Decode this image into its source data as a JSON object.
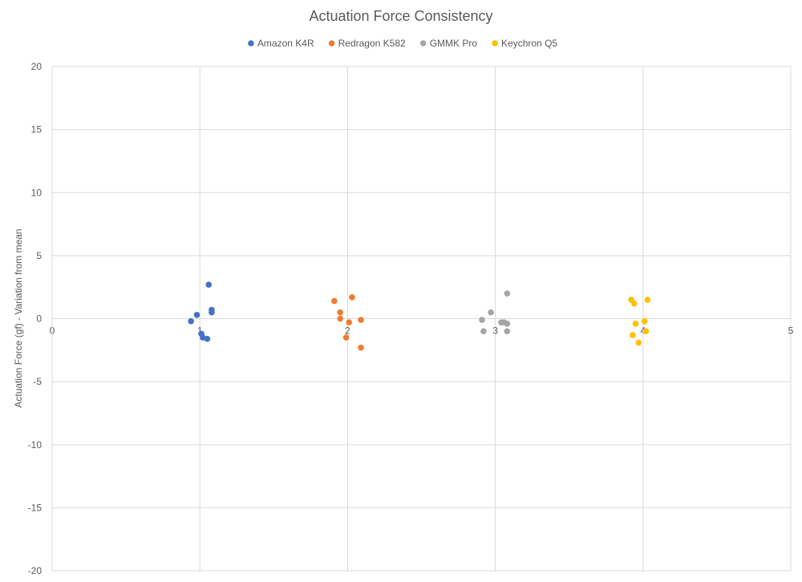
{
  "chart_data": {
    "type": "scatter",
    "title": "Actuation Force Consistency",
    "xlabel": "",
    "ylabel": "Actuation Force (gf) - Variation from mean",
    "xlim": [
      0,
      5
    ],
    "ylim": [
      -20,
      20
    ],
    "x_ticks": [
      "0",
      "1",
      "2",
      "3",
      "4",
      "5"
    ],
    "y_ticks": [
      "20",
      "15",
      "10",
      "5",
      "0",
      "-5",
      "-10",
      "-15",
      "-20"
    ],
    "grid": true,
    "legend_position": "top",
    "series": [
      {
        "name": "Amazon K4R",
        "color": "#4472C4",
        "points": [
          [
            0.94,
            -0.2
          ],
          [
            0.98,
            0.3
          ],
          [
            1.01,
            -1.2
          ],
          [
            1.02,
            -1.5
          ],
          [
            1.05,
            -1.6
          ],
          [
            1.06,
            2.7
          ],
          [
            1.08,
            0.5
          ],
          [
            1.08,
            0.7
          ]
        ]
      },
      {
        "name": "Redragon K582",
        "color": "#ED7D31",
        "points": [
          [
            1.91,
            1.4
          ],
          [
            1.95,
            0.5
          ],
          [
            1.95,
            0.0
          ],
          [
            1.99,
            -1.5
          ],
          [
            2.01,
            -0.3
          ],
          [
            2.03,
            1.7
          ],
          [
            2.09,
            -0.1
          ],
          [
            2.09,
            -2.3
          ]
        ]
      },
      {
        "name": "GMMK Pro",
        "color": "#A5A5A5",
        "points": [
          [
            2.91,
            -0.1
          ],
          [
            2.92,
            -1.0
          ],
          [
            2.97,
            0.5
          ],
          [
            3.04,
            -0.3
          ],
          [
            3.06,
            -0.3
          ],
          [
            3.08,
            -0.4
          ],
          [
            3.08,
            -1.0
          ],
          [
            3.08,
            2.0
          ]
        ]
      },
      {
        "name": "Keychron Q5",
        "color": "#FFC000",
        "points": [
          [
            3.92,
            1.5
          ],
          [
            3.93,
            -1.3
          ],
          [
            3.94,
            1.2
          ],
          [
            3.95,
            -0.4
          ],
          [
            3.97,
            -1.9
          ],
          [
            4.01,
            -0.2
          ],
          [
            4.02,
            -1.0
          ],
          [
            4.03,
            1.5
          ]
        ]
      }
    ]
  }
}
